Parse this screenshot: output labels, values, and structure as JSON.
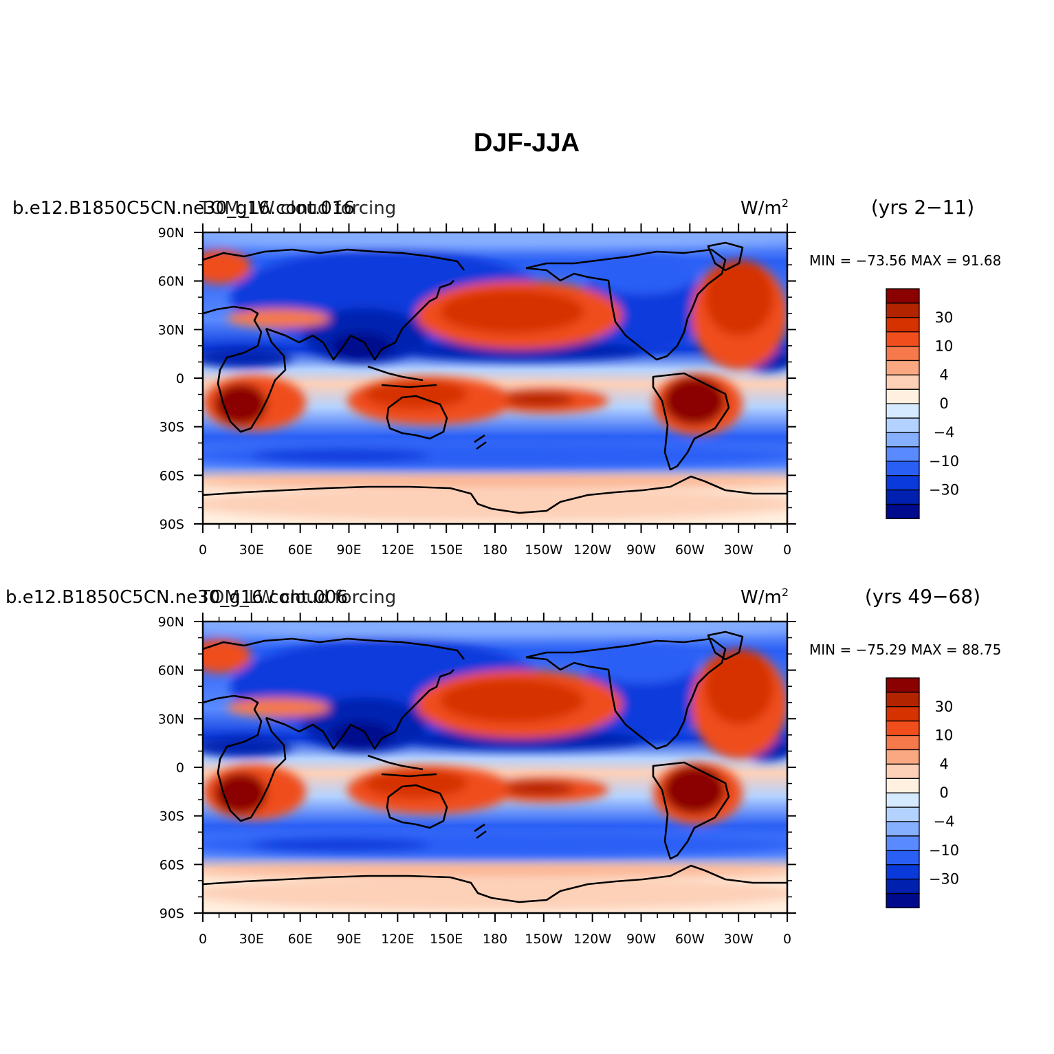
{
  "title": "DJF-JJA",
  "panels": [
    {
      "case_name": "b.e12.B1850C5CN.ne30_g16.cont.016",
      "variable": "TOM_LW cloud forcing",
      "units_base": "W/m",
      "units_exp": "2",
      "years": "(yrs 2−11)",
      "minmax_label": "MIN = −73.56 MAX =  91.68",
      "min": -73.56,
      "max": 91.68
    },
    {
      "case_name": "b.e12.B1850C5CN.ne30_g16.cont.006",
      "variable": "TOM_LW cloud forcing",
      "units_base": "W/m",
      "units_exp": "2",
      "years": "(yrs 49−68)",
      "minmax_label": "MIN = −75.29 MAX =  88.75",
      "min": -75.29,
      "max": 88.75
    }
  ],
  "colorbar": {
    "colors": [
      "#8b0000",
      "#b22300",
      "#d63200",
      "#f04e1c",
      "#f5794a",
      "#f9a882",
      "#fdd0b8",
      "#fff0e0",
      "#d6eaff",
      "#b4d2ff",
      "#87afff",
      "#5a8aff",
      "#2a5ff5",
      "#0a3adc",
      "#0020b0",
      "#000a8c"
    ],
    "labels": [
      "30",
      "10",
      "4",
      "0",
      "−4",
      "−10",
      "−30"
    ]
  },
  "chart_data": {
    "type": "heatmap",
    "projection": "cylindrical equidistant, centered 180",
    "lon_ticks": [
      "0",
      "30E",
      "60E",
      "90E",
      "120E",
      "150E",
      "180",
      "150W",
      "120W",
      "90W",
      "60W",
      "30W",
      "0"
    ],
    "lat_ticks": [
      "90N",
      "60N",
      "30N",
      "0",
      "30S",
      "60S",
      "90S"
    ],
    "contour_levels": [
      -30,
      -10,
      -4,
      0,
      4,
      10,
      30
    ],
    "description_regions": {
      "positive": [
        "southern Africa",
        "South America",
        "Maritime Continent / northern Australia",
        "North Pacific",
        "North Atlantic",
        "Antarctica (weak)"
      ],
      "negative": [
        "Eurasia / Asia",
        "North America",
        "tropical north Pacific band",
        "Southern Ocean band",
        "Arctic"
      ]
    }
  }
}
